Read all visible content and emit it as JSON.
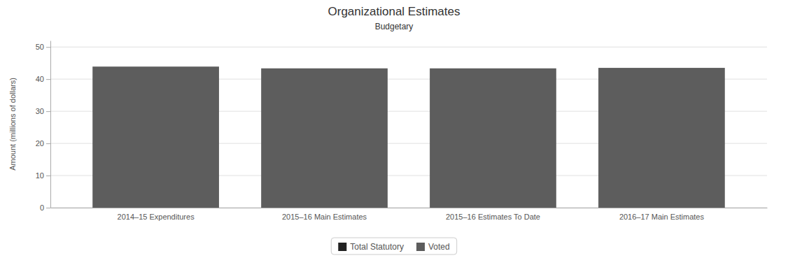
{
  "chart_data": {
    "type": "bar",
    "title": "Organizational Estimates",
    "subtitle": "Budgetary",
    "categories": [
      "2014–15 Expenditures",
      "2015–16 Main Estimates",
      "2015–16 Estimates To Date",
      "2016–17 Main Estimates"
    ],
    "series": [
      {
        "name": "Voted",
        "color": "#5d5d5d",
        "values": [
          43.9,
          43.35,
          43.35,
          43.5
        ]
      },
      {
        "name": "Total Statutory",
        "color": "#222222",
        "values": [
          0.0,
          0.0,
          0.0,
          0.0
        ]
      }
    ],
    "stacked": true,
    "ylabel": "Amount (millions of dollars)",
    "ylim": [
      0,
      52
    ],
    "yticks": [
      0,
      10,
      20,
      30,
      40,
      50
    ],
    "grid": true,
    "legend": "bottom"
  }
}
